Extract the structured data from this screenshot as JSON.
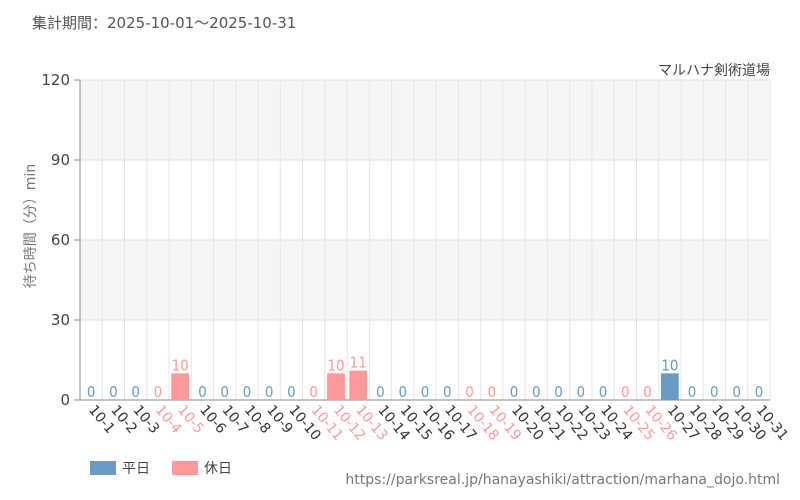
{
  "header": {
    "period": "集計期間：2025-10-01～2025-10-31",
    "attraction": "マルハナ剣術道場"
  },
  "footer": {
    "source_url": "https://parksreal.jp/hanayashiki/attraction/marhana_dojo.html"
  },
  "legend": {
    "weekday_label": "平日",
    "holiday_label": "休日"
  },
  "colors": {
    "weekday": "#6a9ac4",
    "holiday": "#ff9999",
    "grid_band": "#f5f5f5"
  },
  "chart_data": {
    "type": "bar",
    "ylabel": "待ち時間（分）min",
    "ylim": [
      0,
      120
    ],
    "yticks": [
      0,
      30,
      60,
      90,
      120
    ],
    "grid": true,
    "legend_position": "bottom-left",
    "categories": [
      "10-1",
      "10-2",
      "10-3",
      "10-4",
      "10-5",
      "10-6",
      "10-7",
      "10-8",
      "10-9",
      "10-10",
      "10-11",
      "10-12",
      "10-13",
      "10-14",
      "10-15",
      "10-16",
      "10-17",
      "10-18",
      "10-19",
      "10-20",
      "10-21",
      "10-22",
      "10-23",
      "10-24",
      "10-25",
      "10-26",
      "10-27",
      "10-28",
      "10-29",
      "10-30",
      "10-31"
    ],
    "values": [
      0,
      0,
      0,
      0,
      10,
      0,
      0,
      0,
      0,
      0,
      0,
      10,
      11,
      0,
      0,
      0,
      0,
      0,
      0,
      0,
      0,
      0,
      0,
      0,
      0,
      0,
      10,
      0,
      0,
      0,
      0
    ],
    "day_types": [
      "weekday",
      "weekday",
      "weekday",
      "holiday",
      "holiday",
      "weekday",
      "weekday",
      "weekday",
      "weekday",
      "weekday",
      "holiday",
      "holiday",
      "holiday",
      "weekday",
      "weekday",
      "weekday",
      "weekday",
      "holiday",
      "holiday",
      "weekday",
      "weekday",
      "weekday",
      "weekday",
      "weekday",
      "holiday",
      "holiday",
      "weekday",
      "weekday",
      "weekday",
      "weekday",
      "weekday"
    ]
  }
}
